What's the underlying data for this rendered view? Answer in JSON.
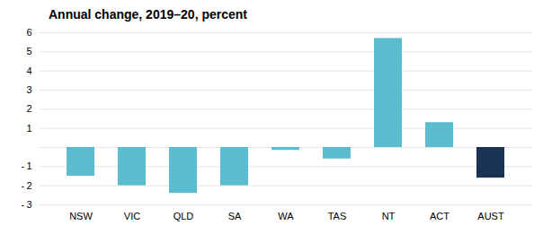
{
  "chart_data": {
    "type": "bar",
    "title": "Annual change, 2019–20,  percent",
    "categories": [
      "NSW",
      "VIC",
      "QLD",
      "SA",
      "WA",
      "TAS",
      "NT",
      "ACT",
      "AUST"
    ],
    "values": [
      -1.5,
      -2.0,
      -2.4,
      -2.0,
      -0.15,
      -0.6,
      5.7,
      1.3,
      -1.6
    ],
    "colors": [
      "#5bbcce",
      "#5bbcce",
      "#5bbcce",
      "#5bbcce",
      "#5bbcce",
      "#5bbcce",
      "#5bbcce",
      "#5bbcce",
      "#1a3355"
    ],
    "ylim": [
      -3,
      6
    ],
    "yticks": [
      {
        "value": -3,
        "label": "- 3"
      },
      {
        "value": -2,
        "label": "- 2"
      },
      {
        "value": -1,
        "label": "- 1"
      },
      {
        "value": 0,
        "label": null
      },
      1,
      2,
      3,
      4,
      5,
      6
    ],
    "grid": true
  }
}
